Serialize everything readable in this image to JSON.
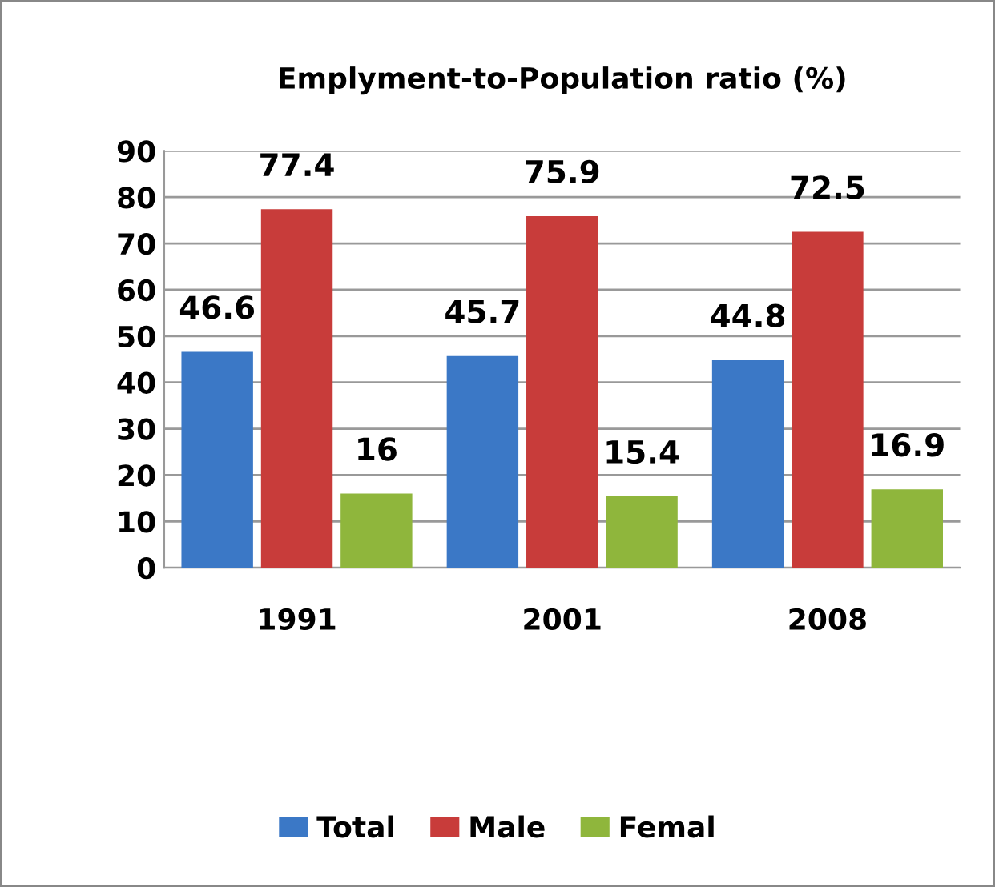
{
  "chart_data": {
    "type": "bar",
    "title": "Emplyment-to-Population ratio (%)",
    "categories": [
      "1991",
      "2001",
      "2008"
    ],
    "series": [
      {
        "name": "Total",
        "color": "#3b78c6",
        "values": [
          46.6,
          45.7,
          44.8
        ]
      },
      {
        "name": "Male",
        "color": "#c83c3a",
        "values": [
          77.4,
          75.9,
          72.5
        ]
      },
      {
        "name": "Femal",
        "color": "#8fb63c",
        "values": [
          16,
          15.4,
          16.9
        ]
      }
    ],
    "ylim": [
      0,
      90
    ],
    "yticks": [
      0,
      10,
      20,
      30,
      40,
      50,
      60,
      70,
      80,
      90
    ],
    "grid": "y",
    "legend": "bottom",
    "data_labels": true
  }
}
